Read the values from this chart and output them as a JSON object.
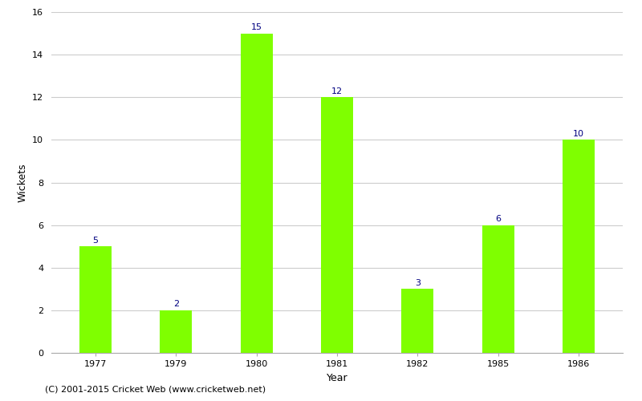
{
  "categories": [
    "1977",
    "1979",
    "1980",
    "1981",
    "1982",
    "1985",
    "1986"
  ],
  "values": [
    5,
    2,
    15,
    12,
    3,
    6,
    10
  ],
  "bar_color": "#7fff00",
  "bar_edgecolor": "#7fff00",
  "label_color": "#000080",
  "label_fontsize": 8,
  "xlabel": "Year",
  "ylabel": "Wickets",
  "ylim": [
    0,
    16
  ],
  "yticks": [
    0,
    2,
    4,
    6,
    8,
    10,
    12,
    14,
    16
  ],
  "grid_color": "#cccccc",
  "background_color": "#ffffff",
  "footnote": "(C) 2001-2015 Cricket Web (www.cricketweb.net)",
  "footnote_fontsize": 8,
  "axis_label_fontsize": 9,
  "tick_fontsize": 8
}
